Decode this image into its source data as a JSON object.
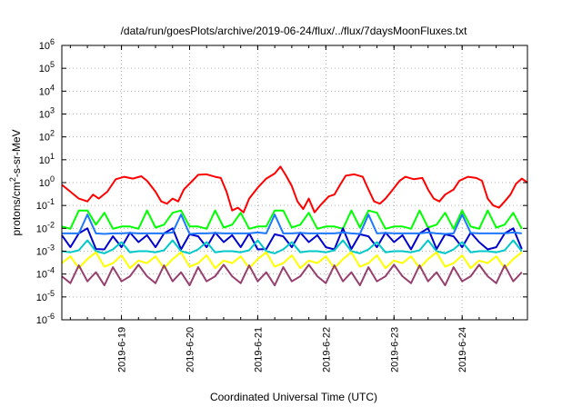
{
  "chart_data": {
    "type": "line",
    "title": "/data/run/goesPlots/archive/2019-06-24/flux/../flux/7daysMoonFluxes.txt",
    "xlabel": "Coordinated Universal Time (UTC)",
    "ylabel_parts": [
      "protons/cm",
      "2",
      "-s-sr-MeV"
    ],
    "y_scale": "log",
    "ylim": [
      1e-06,
      1000000.0
    ],
    "y_ticks": [
      {
        "base": "10",
        "exp": "-6",
        "value": 1e-06
      },
      {
        "base": "10",
        "exp": "-5",
        "value": 1e-05
      },
      {
        "base": "10",
        "exp": "-4",
        "value": 0.0001
      },
      {
        "base": "10",
        "exp": "-3",
        "value": 0.001
      },
      {
        "base": "10",
        "exp": "-2",
        "value": 0.01
      },
      {
        "base": "10",
        "exp": "-1",
        "value": 0.1
      },
      {
        "base": "10",
        "exp": "0",
        "value": 1
      },
      {
        "base": "10",
        "exp": "1",
        "value": 10.0
      },
      {
        "base": "10",
        "exp": "2",
        "value": 100.0
      },
      {
        "base": "10",
        "exp": "3",
        "value": 1000.0
      },
      {
        "base": "10",
        "exp": "4",
        "value": 10000.0
      },
      {
        "base": "10",
        "exp": "5",
        "value": 100000.0
      },
      {
        "base": "10",
        "exp": "6",
        "value": 1000000.0
      }
    ],
    "xlim": [
      "2019-06-18T03:00",
      "2019-06-24T23:00"
    ],
    "x_ticks": [
      {
        "label": "2019-6-19",
        "value": "2019-06-19T00:00"
      },
      {
        "label": "2019-6-20",
        "value": "2019-06-20T00:00"
      },
      {
        "label": "2019-6-21",
        "value": "2019-06-21T00:00"
      },
      {
        "label": "2019-6-22",
        "value": "2019-06-22T00:00"
      },
      {
        "label": "2019-6-23",
        "value": "2019-06-23T00:00"
      },
      {
        "label": "2019-6-24",
        "value": "2019-06-24T00:00"
      }
    ],
    "grid": true,
    "series": [
      {
        "color": "#ff0000",
        "points": [
          [
            "2019-06-18T03:00",
            0.8
          ],
          [
            "2019-06-18T06:00",
            0.4
          ],
          [
            "2019-06-18T09:00",
            0.2
          ],
          [
            "2019-06-18T12:00",
            0.15
          ],
          [
            "2019-06-18T14:00",
            0.3
          ],
          [
            "2019-06-18T16:00",
            0.2
          ],
          [
            "2019-06-18T19:00",
            0.4
          ],
          [
            "2019-06-18T22:00",
            1.4
          ],
          [
            "2019-06-19T01:00",
            1.8
          ],
          [
            "2019-06-19T04:00",
            1.5
          ],
          [
            "2019-06-19T07:00",
            1.9
          ],
          [
            "2019-06-19T09:00",
            1.2
          ],
          [
            "2019-06-19T12:00",
            0.4
          ],
          [
            "2019-06-19T14:00",
            0.15
          ],
          [
            "2019-06-19T16:00",
            0.12
          ],
          [
            "2019-06-19T18:00",
            0.2
          ],
          [
            "2019-06-19T20:00",
            0.15
          ],
          [
            "2019-06-19T22:00",
            0.5
          ],
          [
            "2019-06-20T01:00",
            1.2
          ],
          [
            "2019-06-20T03:00",
            2.2
          ],
          [
            "2019-06-20T06:00",
            2.3
          ],
          [
            "2019-06-20T09:00",
            1.8
          ],
          [
            "2019-06-20T11:00",
            1.6
          ],
          [
            "2019-06-20T13:00",
            0.4
          ],
          [
            "2019-06-20T15:00",
            0.06
          ],
          [
            "2019-06-20T17:00",
            0.08
          ],
          [
            "2019-06-20T19:00",
            0.05
          ],
          [
            "2019-06-20T21:00",
            0.2
          ],
          [
            "2019-06-21T00:00",
            0.6
          ],
          [
            "2019-06-21T03:00",
            1.5
          ],
          [
            "2019-06-21T06:00",
            2.5
          ],
          [
            "2019-06-21T08:00",
            5.0
          ],
          [
            "2019-06-21T10:00",
            2.0
          ],
          [
            "2019-06-21T12:00",
            0.7
          ],
          [
            "2019-06-21T14:00",
            0.15
          ],
          [
            "2019-06-21T16:00",
            0.07
          ],
          [
            "2019-06-21T18:00",
            0.2
          ],
          [
            "2019-06-21T20:00",
            0.05
          ],
          [
            "2019-06-21T22:00",
            0.1
          ],
          [
            "2019-06-22T01:00",
            0.25
          ],
          [
            "2019-06-22T03:00",
            0.3
          ],
          [
            "2019-06-22T05:00",
            0.8
          ],
          [
            "2019-06-22T07:00",
            2.0
          ],
          [
            "2019-06-22T10:00",
            2.3
          ],
          [
            "2019-06-22T13:00",
            1.8
          ],
          [
            "2019-06-22T15:00",
            0.5
          ],
          [
            "2019-06-22T17:00",
            0.15
          ],
          [
            "2019-06-22T19:00",
            0.12
          ],
          [
            "2019-06-22T21:00",
            0.2
          ],
          [
            "2019-06-22T23:00",
            0.4
          ],
          [
            "2019-06-23T02:00",
            1.2
          ],
          [
            "2019-06-23T04:00",
            1.8
          ],
          [
            "2019-06-23T07:00",
            1.4
          ],
          [
            "2019-06-23T10:00",
            1.6
          ],
          [
            "2019-06-23T12:00",
            0.5
          ],
          [
            "2019-06-23T14:00",
            0.2
          ],
          [
            "2019-06-23T16:00",
            0.15
          ],
          [
            "2019-06-23T18:00",
            0.3
          ],
          [
            "2019-06-23T21:00",
            0.5
          ],
          [
            "2019-06-23T23:00",
            1.2
          ],
          [
            "2019-06-24T02:00",
            1.8
          ],
          [
            "2019-06-24T05:00",
            1.6
          ],
          [
            "2019-06-24T07:00",
            1.2
          ],
          [
            "2019-06-24T09:00",
            0.2
          ],
          [
            "2019-06-24T11:00",
            0.1
          ],
          [
            "2019-06-24T13:00",
            0.08
          ],
          [
            "2019-06-24T15:00",
            0.15
          ],
          [
            "2019-06-24T17:00",
            0.3
          ],
          [
            "2019-06-24T19:00",
            0.9
          ],
          [
            "2019-06-24T21:00",
            1.5
          ],
          [
            "2019-06-24T23:00",
            1.0
          ]
        ]
      },
      {
        "color": "#00ff00",
        "base": 0.012,
        "spike": 0.06,
        "period_h": 3,
        "pattern": [
          1,
          0.8,
          5,
          0.9,
          1.2,
          4,
          0.8,
          1
        ]
      },
      {
        "color": "#0000cc",
        "base": 0.005,
        "low": 0.0012,
        "period_h": 3,
        "pattern": [
          1,
          0.3,
          1.2,
          2,
          0.25,
          1.1,
          0.9,
          0.3,
          1.3,
          0.5
        ]
      },
      {
        "color": "#1e78ff",
        "base": 0.006,
        "spike": 0.04,
        "period_h": 3,
        "pattern": [
          1,
          1,
          1,
          1.1,
          1,
          0.95,
          1,
          1,
          1.05,
          1
        ]
      },
      {
        "color": "#00c8c8",
        "base": 0.001,
        "period_h": 3,
        "pattern": [
          1,
          0.9,
          1.1,
          3,
          1,
          0.8,
          1.2,
          2.5,
          0.9,
          1
        ]
      },
      {
        "color": "#ffff00",
        "base": 0.0003,
        "period_h": 3,
        "pattern": [
          1,
          2,
          0.6,
          1.5,
          3,
          0.7,
          1,
          2.2,
          0.6,
          1.3
        ]
      },
      {
        "color": "#964070",
        "base": 8e-05,
        "period_h": 3,
        "pattern": [
          1,
          0.5,
          3,
          0.6,
          1.5,
          0.4,
          2.5,
          0.6,
          1,
          3.2
        ]
      }
    ]
  }
}
